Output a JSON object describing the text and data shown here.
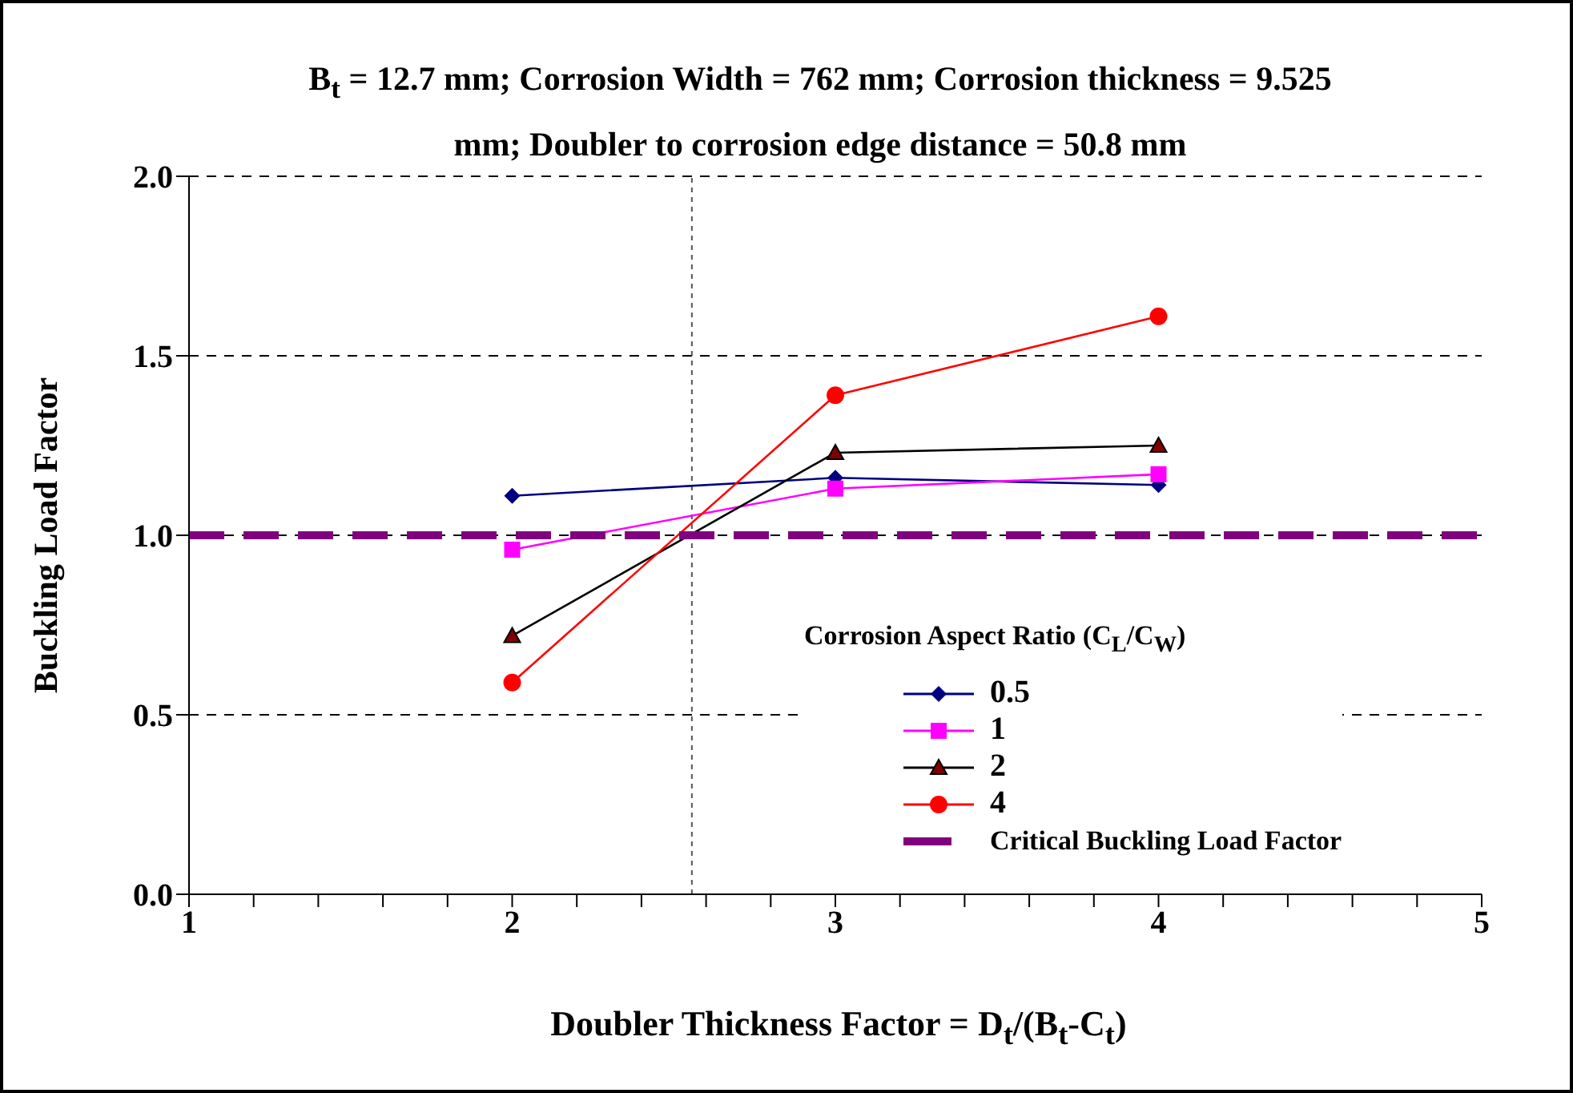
{
  "chart_data": {
    "type": "line",
    "title": "B$_{t}$ = 12.7 mm; Corrosion Width = 762 mm; Corrosion thickness = 9.525 mm; Doubler to corrosion edge distance = 50.8 mm",
    "xlabel": "Doubler Thickness Factor = D$_{t}$/(B$_{t}$-C$_{t}$)",
    "ylabel": "Buckling Load Factor",
    "legend_title": "Corrosion Aspect Ratio (C$_{L}$/C$_{W}$)",
    "legend": "bottom right",
    "grid": "y",
    "xlim": [
      1,
      5
    ],
    "ylim": [
      0,
      2
    ],
    "xticks": [
      1,
      {
        "value": 1.2,
        "label": null
      },
      {
        "value": 1.4,
        "label": null
      },
      {
        "value": 1.6,
        "label": null
      },
      {
        "value": 1.8,
        "label": null
      },
      2,
      {
        "value": 2.2,
        "label": null
      },
      {
        "value": 2.4,
        "label": null
      },
      {
        "value": 2.6,
        "label": null
      },
      {
        "value": 2.8,
        "label": null
      },
      3,
      {
        "value": 3.2,
        "label": null
      },
      {
        "value": 3.4,
        "label": null
      },
      {
        "value": 3.6,
        "label": null
      },
      {
        "value": 3.8,
        "label": null
      },
      4,
      {
        "value": 4.2,
        "label": null
      },
      {
        "value": 4.4,
        "label": null
      },
      {
        "value": 4.6,
        "label": null
      },
      {
        "value": 4.8,
        "label": null
      },
      5
    ],
    "yticks": [
      {
        "value": 0,
        "label": "0.0"
      },
      {
        "value": 0.5,
        "label": "0.5"
      },
      {
        "value": 1,
        "label": "1.0"
      },
      {
        "value": 1.5,
        "label": "1.5"
      },
      {
        "value": 2,
        "label": "2.0"
      }
    ],
    "ref_lines": [
      {
        "axis": "x",
        "value": 2.556,
        "color": "#555555",
        "line_style": "dotted"
      }
    ],
    "series": [
      {
        "name": "0.5",
        "color": "#000080",
        "marker": "diamond",
        "x": [
          2,
          3,
          4
        ],
        "values": [
          1.11,
          1.16,
          1.14
        ]
      },
      {
        "name": "1",
        "color": "#ff00ff",
        "marker": "square",
        "x": [
          2,
          3,
          4
        ],
        "values": [
          0.96,
          1.13,
          1.17
        ]
      },
      {
        "name": "2",
        "color": "#000000",
        "marker": "triangle",
        "x": [
          2,
          3,
          4
        ],
        "values": [
          0.72,
          1.23,
          1.25
        ]
      },
      {
        "name": "4",
        "color": "#ff0000",
        "marker": "circle",
        "x": [
          2,
          3,
          4
        ],
        "values": [
          0.59,
          1.39,
          1.61
        ]
      },
      {
        "name": "Critical Buckling Load Factor",
        "color": "#800080",
        "marker": "none",
        "line_style": "dashed",
        "x": [
          1,
          5
        ],
        "values": [
          1,
          1
        ]
      }
    ]
  }
}
